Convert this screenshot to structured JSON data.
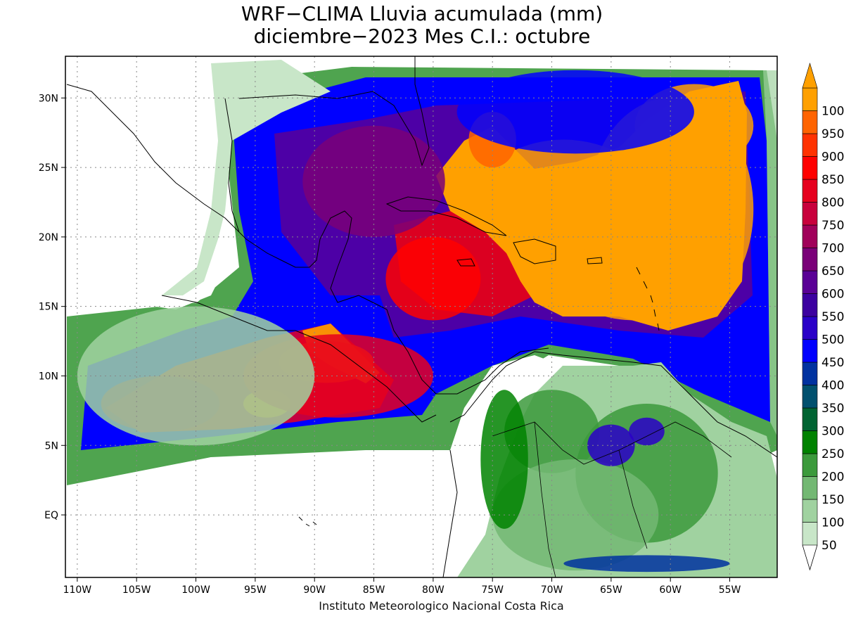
{
  "title": {
    "line1": "WRF−CLIMA Lluvia acumulada (mm)",
    "line2": "diciembre−2023 Mes C.I.: octubre"
  },
  "credit": "Instituto Meteorologico Nacional Costa Rica",
  "axes": {
    "lon_ticks": [
      {
        "value": -110,
        "label": "110W"
      },
      {
        "value": -105,
        "label": "105W"
      },
      {
        "value": -100,
        "label": "100W"
      },
      {
        "value": -95,
        "label": "95W"
      },
      {
        "value": -90,
        "label": "90W"
      },
      {
        "value": -85,
        "label": "85W"
      },
      {
        "value": -80,
        "label": "80W"
      },
      {
        "value": -75,
        "label": "75W"
      },
      {
        "value": -70,
        "label": "70W"
      },
      {
        "value": -65,
        "label": "65W"
      },
      {
        "value": -60,
        "label": "60W"
      },
      {
        "value": -55,
        "label": "55W"
      }
    ],
    "lat_ticks": [
      {
        "value": 30,
        "label": "30N"
      },
      {
        "value": 25,
        "label": "25N"
      },
      {
        "value": 20,
        "label": "20N"
      },
      {
        "value": 15,
        "label": "15N"
      },
      {
        "value": 10,
        "label": "10N"
      },
      {
        "value": 5,
        "label": "5N"
      },
      {
        "value": 0,
        "label": "EQ"
      }
    ],
    "lon_range": [
      -111,
      -51
    ],
    "lat_range": [
      -4.5,
      33
    ],
    "grid": true
  },
  "colorbar": {
    "levels": [
      {
        "label": "50",
        "color": "#c8e6c8"
      },
      {
        "label": "100",
        "color": "#a0d2a0"
      },
      {
        "label": "150",
        "color": "#73b873"
      },
      {
        "label": "200",
        "color": "#3c9a3c"
      },
      {
        "label": "250",
        "color": "#008200"
      },
      {
        "label": "300",
        "color": "#006432"
      },
      {
        "label": "350",
        "color": "#00506e"
      },
      {
        "label": "400",
        "color": "#0032a0"
      },
      {
        "label": "450",
        "color": "#0000ff"
      },
      {
        "label": "500",
        "color": "#2a00c8"
      },
      {
        "label": "550",
        "color": "#3c00a0"
      },
      {
        "label": "600",
        "color": "#5a0096"
      },
      {
        "label": "650",
        "color": "#7a0078"
      },
      {
        "label": "700",
        "color": "#a0005a"
      },
      {
        "label": "750",
        "color": "#c8003c"
      },
      {
        "label": "800",
        "color": "#e6001e"
      },
      {
        "label": "850",
        "color": "#ff0000"
      },
      {
        "label": "900",
        "color": "#ff3200"
      },
      {
        "label": "950",
        "color": "#ff6400"
      },
      {
        "label": "100",
        "color": "#ffa000"
      }
    ]
  },
  "rain_fields": [
    {
      "lon": -60,
      "lat": 22,
      "rx": 7,
      "ry": 8,
      "level": 19
    },
    {
      "lon": -69,
      "lat": 23,
      "rx": 7,
      "ry": 4,
      "level": 19
    },
    {
      "lon": -58,
      "lat": 28,
      "rx": 5,
      "ry": 3,
      "level": 19
    },
    {
      "lon": -63,
      "lat": 17,
      "rx": 6,
      "ry": 3,
      "level": 19
    },
    {
      "lon": -75,
      "lat": 27,
      "rx": 2,
      "ry": 2,
      "level": 18
    },
    {
      "lon": -89,
      "lat": 11,
      "rx": 4,
      "ry": 1.5,
      "level": 18
    },
    {
      "lon": -94,
      "lat": 8,
      "rx": 2,
      "ry": 1,
      "level": 18
    },
    {
      "lon": -80,
      "lat": 17,
      "rx": 4,
      "ry": 3,
      "level": 16
    },
    {
      "lon": -88,
      "lat": 10,
      "rx": 8,
      "ry": 3,
      "level": 15
    },
    {
      "lon": -103,
      "lat": 8,
      "rx": 5,
      "ry": 2,
      "level": 13
    },
    {
      "lon": -85,
      "lat": 24,
      "rx": 6,
      "ry": 4,
      "level": 12
    },
    {
      "lon": -68,
      "lat": 29,
      "rx": 10,
      "ry": 3,
      "level": 8
    },
    {
      "lon": -70,
      "lat": 6,
      "rx": 4,
      "ry": 3,
      "level": 3
    },
    {
      "lon": -62,
      "lat": 3,
      "rx": 6,
      "ry": 5,
      "level": 3
    },
    {
      "lon": -68,
      "lat": 0,
      "rx": 7,
      "ry": 4,
      "level": 2
    },
    {
      "lon": -74,
      "lat": 4,
      "rx": 2,
      "ry": 5,
      "level": 4
    },
    {
      "lon": -65,
      "lat": 5,
      "rx": 2,
      "ry": 1.5,
      "level": 9
    },
    {
      "lon": -62,
      "lat": 6,
      "rx": 1.5,
      "ry": 1,
      "level": 9
    },
    {
      "lon": -100,
      "lat": 10,
      "rx": 10,
      "ry": 5,
      "level": 1
    },
    {
      "lon": -62,
      "lat": -3.5,
      "rx": 7,
      "ry": 0.6,
      "level": 7
    }
  ]
}
